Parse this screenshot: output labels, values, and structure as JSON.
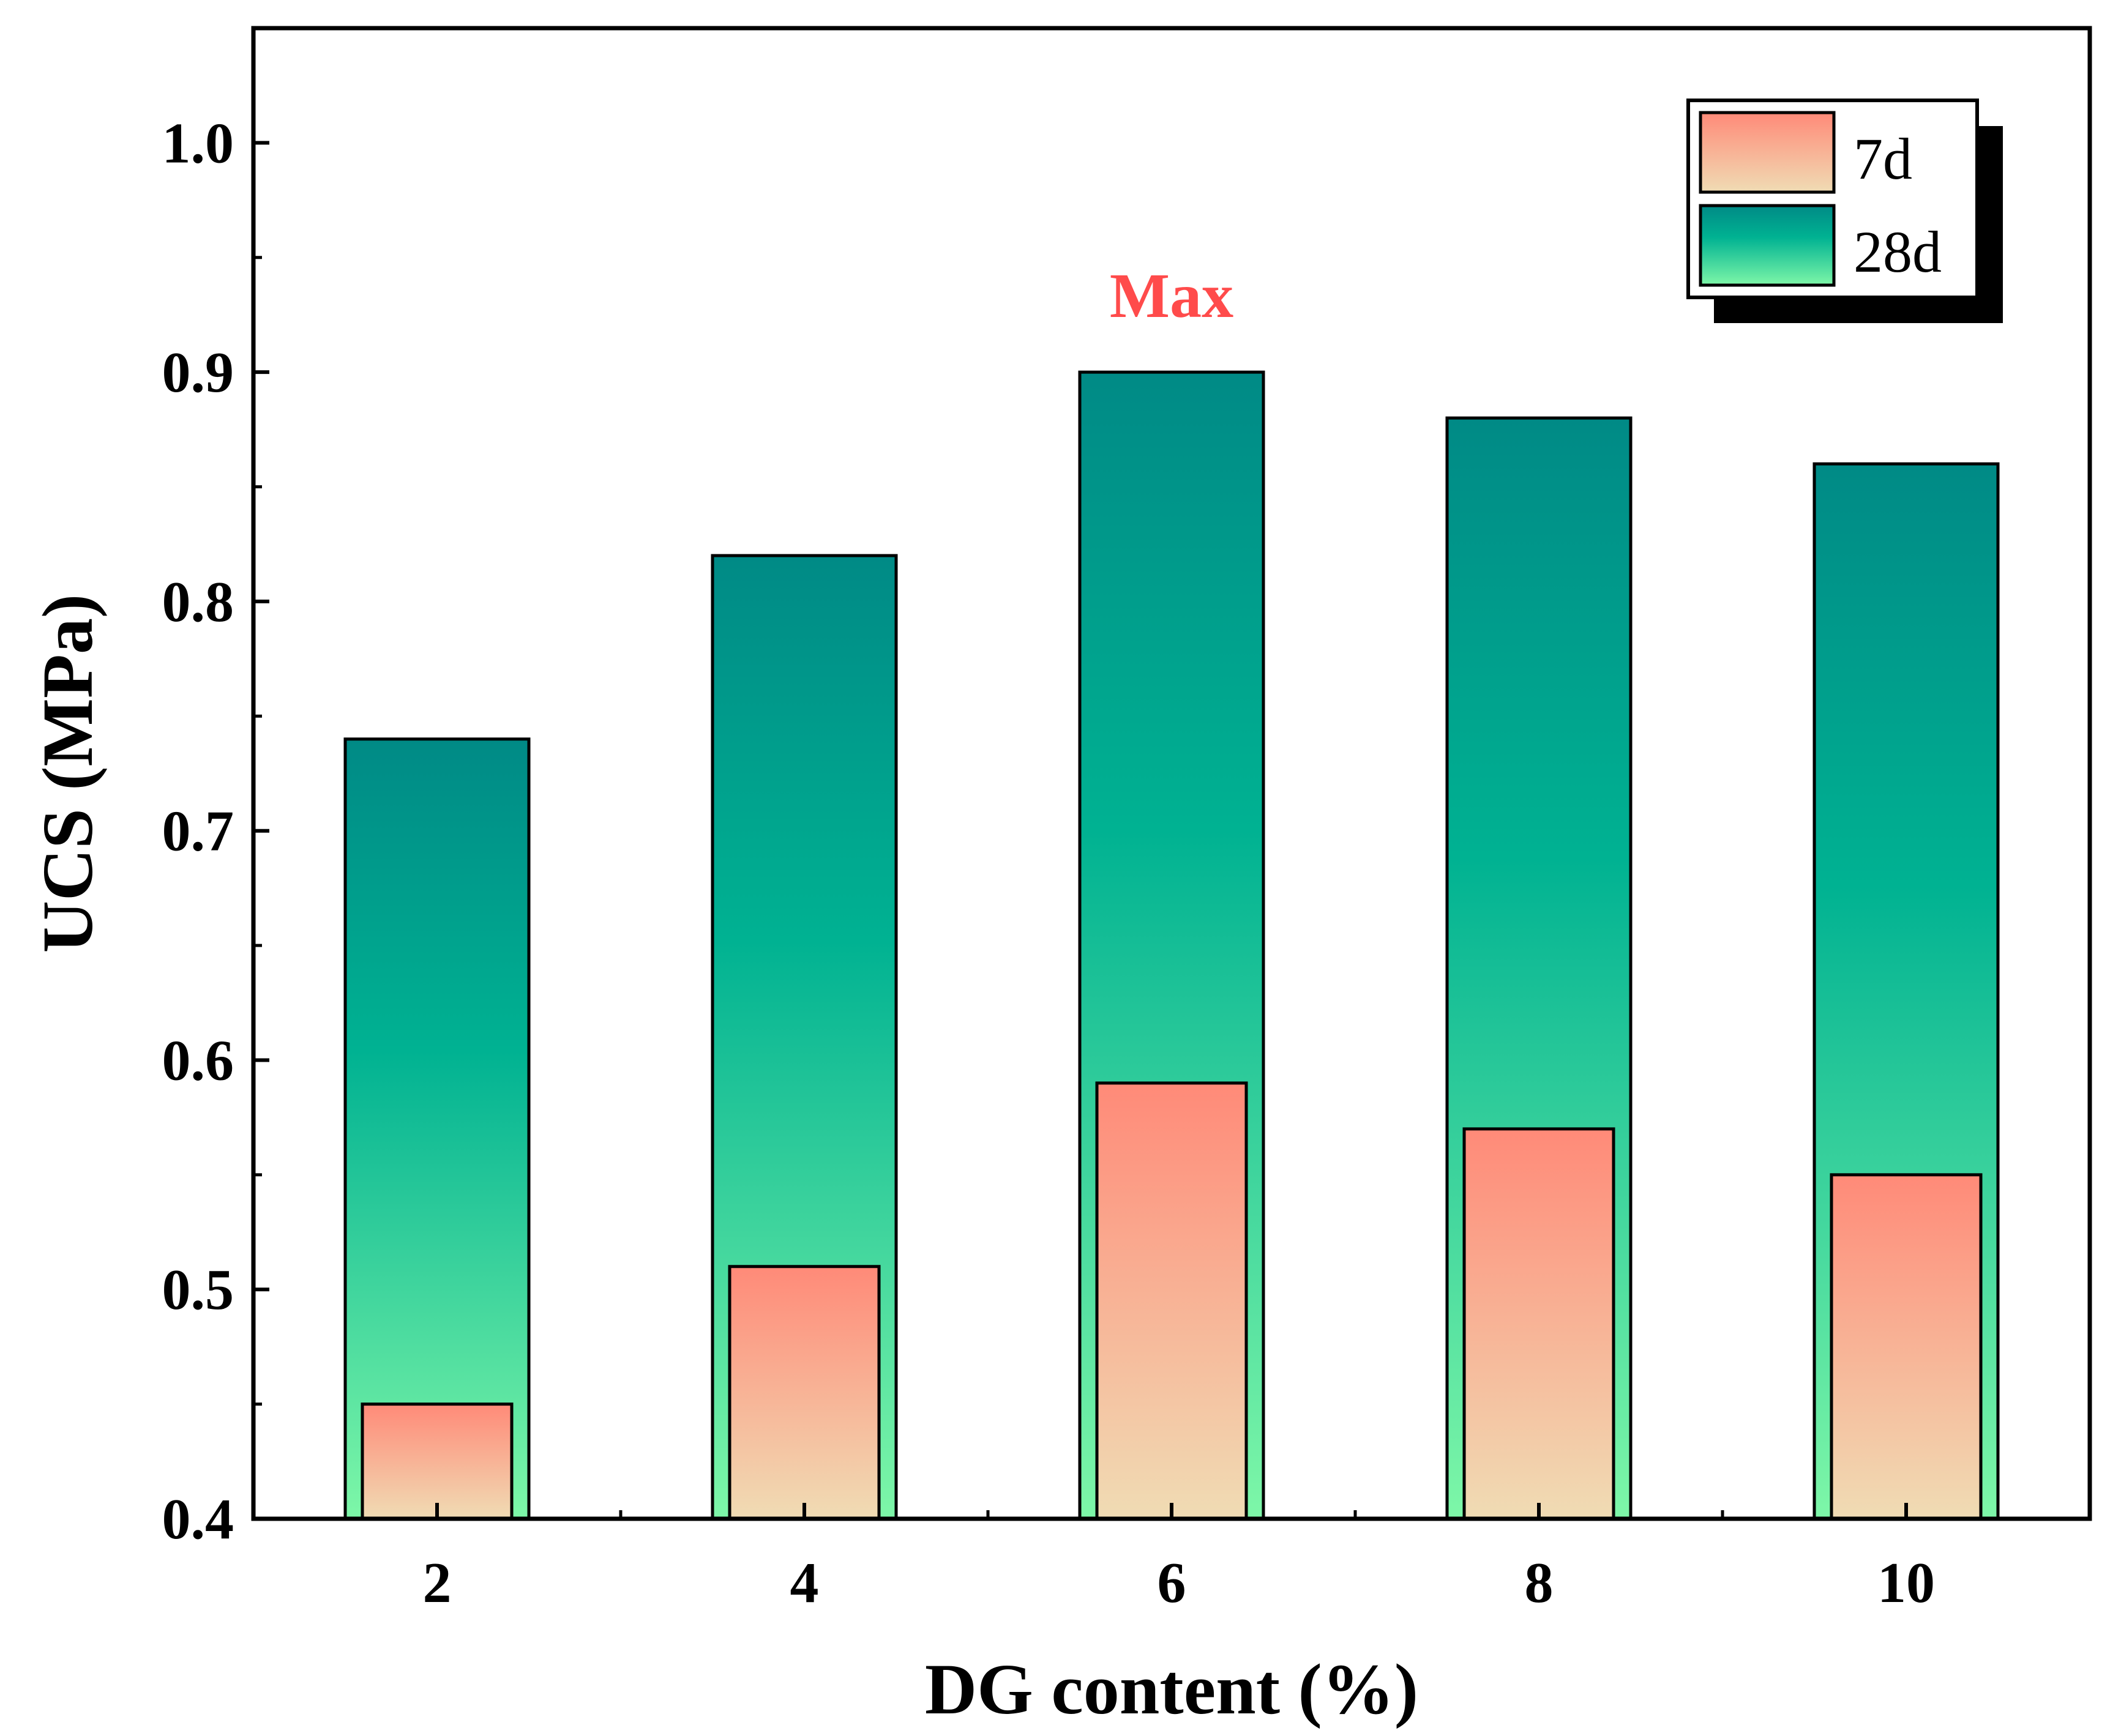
{
  "chart_data": {
    "type": "bar",
    "categories": [
      "2",
      "4",
      "6",
      "8",
      "10"
    ],
    "series": [
      {
        "name": "7d",
        "values": [
          0.45,
          0.51,
          0.59,
          0.57,
          0.55
        ]
      },
      {
        "name": "28d",
        "values": [
          0.74,
          0.82,
          0.9,
          0.88,
          0.86
        ]
      }
    ],
    "ylim": [
      0.4,
      1.05
    ],
    "yticks": [
      "0.4",
      "0.5",
      "0.6",
      "0.7",
      "0.8",
      "0.9",
      "1.0"
    ],
    "xlabel": "DG content (%)",
    "ylabel": "UCS (MPa)",
    "annotation": {
      "text": "Max",
      "category": "6",
      "color": "#ff4b4b"
    },
    "legend": {
      "position": "top-right",
      "entries": [
        "7d",
        "28d"
      ]
    },
    "colors": {
      "d7_top": "#ff8a78",
      "d7_bottom": "#f0dcb4",
      "d28_top": "#008a86",
      "d28_mid": "#00b292",
      "d28_bottom": "#7ef7a8"
    }
  }
}
